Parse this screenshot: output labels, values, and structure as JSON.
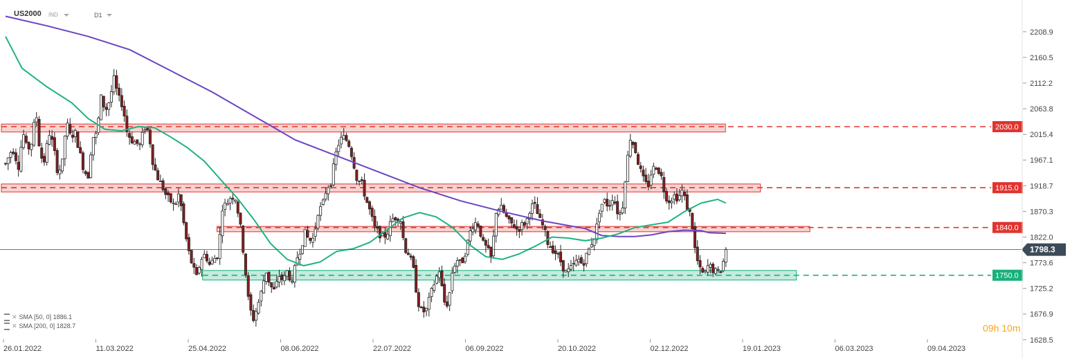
{
  "header": {
    "symbol": "US2000",
    "instrument_type": "IND",
    "timeframe": "D1"
  },
  "indicators": [
    {
      "label": "SMA [50, 0]",
      "value": "1886.1",
      "color": "#1db37f"
    },
    {
      "label": "SMA [200, 0]",
      "value": "1828.7",
      "color": "#6a44c4"
    }
  ],
  "timer": {
    "hours": "09",
    "h": "h",
    "minutes": "10",
    "m": "m"
  },
  "chart_data": {
    "type": "candlestick",
    "ylim": [
      1610,
      2240
    ],
    "price_ticks": [
      {
        "value": 2208.9,
        "label": "2208.9"
      },
      {
        "value": 2160.5,
        "label": "2160.5"
      },
      {
        "value": 2112.2,
        "label": "2112.2"
      },
      {
        "value": 2063.8,
        "label": "2063.8"
      },
      {
        "value": 2015.4,
        "label": "2015.4"
      },
      {
        "value": 1967.1,
        "label": "1967.1"
      },
      {
        "value": 1918.7,
        "label": "1918.7"
      },
      {
        "value": 1870.3,
        "label": "1870.3"
      },
      {
        "value": 1822.0,
        "label": "1822.0"
      },
      {
        "value": 1773.6,
        "label": "1773.6"
      },
      {
        "value": 1725.2,
        "label": "1725.2"
      },
      {
        "value": 1676.9,
        "label": "1676.9"
      },
      {
        "value": 1628.5,
        "label": "1628.5"
      }
    ],
    "date_ticks": [
      "26.01.2022",
      "11.03.2022",
      "25.04.2022",
      "08.06.2022",
      "22.07.2022",
      "06.09.2022",
      "20.10.2022",
      "02.12.2022",
      "19.01.2023",
      "06.03.2023",
      "09.04.2023"
    ],
    "current_price": {
      "value": 1798.3,
      "label": "1798.3",
      "color": "#3d4a57"
    },
    "levels": [
      {
        "value": 2030.0,
        "label": "2030.0",
        "color": "#e0342f",
        "zone": [
          2020,
          2035
        ],
        "zone_start": 0.0,
        "zone_end": 0.806
      },
      {
        "value": 1915.0,
        "label": "1915.0",
        "color": "#e0342f",
        "zone": [
          1907,
          1922
        ],
        "zone_start": 0.0,
        "zone_end": 0.845
      },
      {
        "value": 1840.0,
        "label": "1840.0",
        "color": "#e0342f",
        "zone": [
          1832,
          1842
        ],
        "zone_start": 0.24,
        "zone_end": 0.9
      },
      {
        "value": 1750.0,
        "label": "1750.0",
        "color": "#17b07a",
        "zone": [
          1741,
          1759
        ],
        "zone_start": 0.224,
        "zone_end": 0.885
      }
    ],
    "sma50": {
      "name": "SMA [50, 0]",
      "color": "#1db37f",
      "points": [
        [
          0,
          2200
        ],
        [
          0.02,
          2140
        ],
        [
          0.05,
          2105
        ],
        [
          0.08,
          2075
        ],
        [
          0.1,
          2045
        ],
        [
          0.12,
          2025
        ],
        [
          0.14,
          2022
        ],
        [
          0.16,
          2030
        ],
        [
          0.18,
          2028
        ],
        [
          0.2,
          2010
        ],
        [
          0.22,
          1990
        ],
        [
          0.24,
          1965
        ],
        [
          0.26,
          1930
        ],
        [
          0.28,
          1895
        ],
        [
          0.3,
          1855
        ],
        [
          0.32,
          1810
        ],
        [
          0.34,
          1780
        ],
        [
          0.36,
          1768
        ],
        [
          0.38,
          1775
        ],
        [
          0.4,
          1795
        ],
        [
          0.42,
          1800
        ],
        [
          0.44,
          1812
        ],
        [
          0.46,
          1835
        ],
        [
          0.48,
          1858
        ],
        [
          0.5,
          1868
        ],
        [
          0.52,
          1860
        ],
        [
          0.54,
          1840
        ],
        [
          0.56,
          1808
        ],
        [
          0.58,
          1785
        ],
        [
          0.6,
          1780
        ],
        [
          0.62,
          1790
        ],
        [
          0.64,
          1805
        ],
        [
          0.66,
          1822
        ],
        [
          0.68,
          1820
        ],
        [
          0.7,
          1815
        ],
        [
          0.72,
          1820
        ],
        [
          0.74,
          1828
        ],
        [
          0.76,
          1840
        ],
        [
          0.78,
          1845
        ],
        [
          0.8,
          1850
        ],
        [
          0.82,
          1870
        ],
        [
          0.84,
          1886
        ],
        [
          0.86,
          1893
        ],
        [
          0.87,
          1886
        ]
      ]
    },
    "sma200": {
      "name": "SMA [200, 0]",
      "color": "#6a44c4",
      "points": [
        [
          0,
          2238
        ],
        [
          0.05,
          2220
        ],
        [
          0.1,
          2200
        ],
        [
          0.15,
          2175
        ],
        [
          0.2,
          2135
        ],
        [
          0.25,
          2095
        ],
        [
          0.3,
          2050
        ],
        [
          0.35,
          2005
        ],
        [
          0.4,
          1975
        ],
        [
          0.45,
          1945
        ],
        [
          0.5,
          1915
        ],
        [
          0.55,
          1890
        ],
        [
          0.6,
          1870
        ],
        [
          0.65,
          1852
        ],
        [
          0.7,
          1838
        ],
        [
          0.72,
          1825
        ],
        [
          0.74,
          1823
        ],
        [
          0.76,
          1823
        ],
        [
          0.78,
          1826
        ],
        [
          0.8,
          1832
        ],
        [
          0.82,
          1835
        ],
        [
          0.84,
          1834
        ],
        [
          0.85,
          1830
        ],
        [
          0.87,
          1829
        ]
      ]
    },
    "candles_path": [
      [
        0,
        1960
      ],
      [
        0.008,
        1990
      ],
      [
        0.015,
        1955
      ],
      [
        0.02,
        2020
      ],
      [
        0.025,
        1985
      ],
      [
        0.03,
        2000
      ],
      [
        0.035,
        2060
      ],
      [
        0.04,
        1975
      ],
      [
        0.045,
        1965
      ],
      [
        0.05,
        2020
      ],
      [
        0.055,
        1995
      ],
      [
        0.06,
        1945
      ],
      [
        0.065,
        1955
      ],
      [
        0.07,
        2040
      ],
      [
        0.075,
        2010
      ],
      [
        0.08,
        2020
      ],
      [
        0.085,
        1985
      ],
      [
        0.09,
        1950
      ],
      [
        0.095,
        1935
      ],
      [
        0.1,
        2010
      ],
      [
        0.105,
        2015
      ],
      [
        0.11,
        2085
      ],
      [
        0.115,
        2060
      ],
      [
        0.12,
        2080
      ],
      [
        0.125,
        2120
      ],
      [
        0.13,
        2085
      ],
      [
        0.135,
        2070
      ],
      [
        0.14,
        2020
      ],
      [
        0.145,
        2005
      ],
      [
        0.15,
        2000
      ],
      [
        0.155,
        1995
      ],
      [
        0.16,
        2030
      ],
      [
        0.165,
        2020
      ],
      [
        0.17,
        1960
      ],
      [
        0.175,
        1935
      ],
      [
        0.18,
        1920
      ],
      [
        0.185,
        1900
      ],
      [
        0.19,
        1890
      ],
      [
        0.195,
        1880
      ],
      [
        0.2,
        1905
      ],
      [
        0.205,
        1850
      ],
      [
        0.21,
        1800
      ],
      [
        0.215,
        1770
      ],
      [
        0.22,
        1745
      ],
      [
        0.225,
        1780
      ],
      [
        0.23,
        1790
      ],
      [
        0.235,
        1770
      ],
      [
        0.24,
        1780
      ],
      [
        0.245,
        1790
      ],
      [
        0.25,
        1880
      ],
      [
        0.255,
        1885
      ],
      [
        0.26,
        1900
      ],
      [
        0.265,
        1895
      ],
      [
        0.27,
        1850
      ],
      [
        0.275,
        1780
      ],
      [
        0.28,
        1700
      ],
      [
        0.285,
        1665
      ],
      [
        0.29,
        1690
      ],
      [
        0.295,
        1720
      ],
      [
        0.3,
        1760
      ],
      [
        0.305,
        1730
      ],
      [
        0.31,
        1720
      ],
      [
        0.315,
        1750
      ],
      [
        0.32,
        1740
      ],
      [
        0.325,
        1760
      ],
      [
        0.33,
        1730
      ],
      [
        0.335,
        1780
      ],
      [
        0.34,
        1800
      ],
      [
        0.345,
        1830
      ],
      [
        0.35,
        1815
      ],
      [
        0.355,
        1820
      ],
      [
        0.36,
        1870
      ],
      [
        0.365,
        1880
      ],
      [
        0.37,
        1915
      ],
      [
        0.375,
        1925
      ],
      [
        0.38,
        1975
      ],
      [
        0.385,
        2005
      ],
      [
        0.39,
        2010
      ],
      [
        0.395,
        2000
      ],
      [
        0.4,
        1970
      ],
      [
        0.405,
        1930
      ],
      [
        0.41,
        1925
      ],
      [
        0.415,
        1895
      ],
      [
        0.42,
        1870
      ],
      [
        0.425,
        1840
      ],
      [
        0.43,
        1830
      ],
      [
        0.435,
        1820
      ],
      [
        0.44,
        1830
      ],
      [
        0.445,
        1855
      ],
      [
        0.45,
        1860
      ],
      [
        0.455,
        1855
      ],
      [
        0.46,
        1800
      ],
      [
        0.465,
        1790
      ],
      [
        0.47,
        1760
      ],
      [
        0.475,
        1700
      ],
      [
        0.48,
        1680
      ],
      [
        0.485,
        1685
      ],
      [
        0.49,
        1715
      ],
      [
        0.495,
        1740
      ],
      [
        0.5,
        1760
      ],
      [
        0.505,
        1700
      ],
      [
        0.51,
        1695
      ],
      [
        0.515,
        1760
      ],
      [
        0.52,
        1780
      ],
      [
        0.525,
        1770
      ],
      [
        0.53,
        1795
      ],
      [
        0.535,
        1830
      ],
      [
        0.54,
        1850
      ],
      [
        0.545,
        1845
      ],
      [
        0.55,
        1810
      ],
      [
        0.555,
        1800
      ],
      [
        0.56,
        1780
      ],
      [
        0.565,
        1870
      ],
      [
        0.57,
        1880
      ],
      [
        0.575,
        1865
      ],
      [
        0.58,
        1850
      ],
      [
        0.585,
        1845
      ],
      [
        0.59,
        1835
      ],
      [
        0.595,
        1845
      ],
      [
        0.6,
        1850
      ],
      [
        0.605,
        1880
      ],
      [
        0.61,
        1880
      ],
      [
        0.615,
        1855
      ],
      [
        0.62,
        1840
      ],
      [
        0.625,
        1810
      ],
      [
        0.63,
        1800
      ],
      [
        0.635,
        1790
      ],
      [
        0.64,
        1775
      ],
      [
        0.645,
        1755
      ],
      [
        0.65,
        1760
      ],
      [
        0.655,
        1770
      ],
      [
        0.66,
        1780
      ],
      [
        0.665,
        1770
      ],
      [
        0.67,
        1790
      ],
      [
        0.675,
        1810
      ],
      [
        0.68,
        1830
      ],
      [
        0.685,
        1880
      ],
      [
        0.69,
        1890
      ],
      [
        0.695,
        1880
      ],
      [
        0.7,
        1900
      ],
      [
        0.705,
        1870
      ],
      [
        0.71,
        1865
      ],
      [
        0.715,
        1950
      ],
      [
        0.72,
        2010
      ],
      [
        0.725,
        1990
      ],
      [
        0.73,
        1955
      ],
      [
        0.735,
        1930
      ],
      [
        0.74,
        1915
      ],
      [
        0.745,
        1950
      ],
      [
        0.75,
        1955
      ],
      [
        0.755,
        1940
      ],
      [
        0.76,
        1900
      ],
      [
        0.765,
        1890
      ],
      [
        0.77,
        1900
      ],
      [
        0.775,
        1895
      ],
      [
        0.78,
        1910
      ],
      [
        0.785,
        1880
      ],
      [
        0.79,
        1860
      ],
      [
        0.795,
        1790
      ],
      [
        0.8,
        1760
      ],
      [
        0.805,
        1750
      ],
      [
        0.81,
        1770
      ],
      [
        0.815,
        1760
      ],
      [
        0.82,
        1755
      ],
      [
        0.825,
        1760
      ],
      [
        0.83,
        1800
      ]
    ]
  }
}
